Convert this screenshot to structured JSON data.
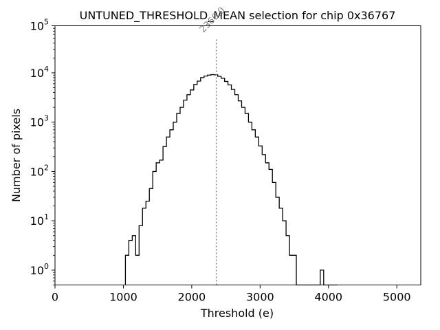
{
  "chart_data": {
    "type": "histogram",
    "title": "UNTUNED_THRESHOLD_MEAN selection for chip 0x36767",
    "xlabel": "Threshold (e)",
    "ylabel": "Number of pixels",
    "xlim": [
      0,
      5350
    ],
    "ylim": [
      0.5,
      90000
    ],
    "yscale": "log",
    "x_ticks": [
      {
        "value": 0,
        "label": "0"
      },
      {
        "value": 1000,
        "label": "1000"
      },
      {
        "value": 2000,
        "label": "2000"
      },
      {
        "value": 3000,
        "label": "3000"
      },
      {
        "value": 4000,
        "label": "4000"
      },
      {
        "value": 5000,
        "label": "5000"
      }
    ],
    "y_ticks": [
      {
        "value": 1,
        "base": "10",
        "exp": "0"
      },
      {
        "value": 10,
        "base": "10",
        "exp": "1"
      },
      {
        "value": 100,
        "base": "10",
        "exp": "2"
      },
      {
        "value": 1000,
        "base": "10",
        "exp": "3"
      },
      {
        "value": 10000,
        "base": "10",
        "exp": "4"
      },
      {
        "value": 100000,
        "base": "10",
        "exp": "5"
      }
    ],
    "bin_edges": [
      1030,
      1080,
      1130,
      1180,
      1230,
      1280,
      1330,
      1380,
      1430,
      1480,
      1530,
      1580,
      1630,
      1680,
      1730,
      1780,
      1830,
      1880,
      1930,
      1980,
      2030,
      2080,
      2130,
      2180,
      2230,
      2280,
      2330,
      2380,
      2430,
      2480,
      2530,
      2580,
      2630,
      2680,
      2730,
      2780,
      2830,
      2880,
      2930,
      2980,
      3030,
      3080,
      3130,
      3180,
      3230,
      3280,
      3330,
      3380,
      3430,
      3480,
      3530,
      3580,
      3630,
      3680,
      3730,
      3780,
      3830,
      3880,
      3930,
      3980,
      4030,
      4080,
      4130
    ],
    "counts": [
      2,
      4,
      5,
      2,
      8,
      18,
      25,
      45,
      100,
      150,
      170,
      320,
      500,
      700,
      1000,
      1500,
      2000,
      2800,
      3600,
      4500,
      5800,
      6800,
      8000,
      8600,
      9000,
      9200,
      9100,
      8500,
      7800,
      6700,
      5700,
      4600,
      3600,
      2700,
      2000,
      1500,
      1000,
      700,
      500,
      330,
      220,
      150,
      110,
      60,
      30,
      18,
      10,
      5,
      2,
      2,
      0,
      0,
      0,
      0,
      0.3,
      0.3,
      0.3,
      1,
      0.3,
      0.3,
      0.3,
      0.3
    ],
    "vline": {
      "x": 2360.0,
      "label": "2360.0",
      "style": "dotted",
      "color": "#808080",
      "height_value": 50000
    },
    "line_color": "#000000",
    "grid": false,
    "legend": "none"
  }
}
